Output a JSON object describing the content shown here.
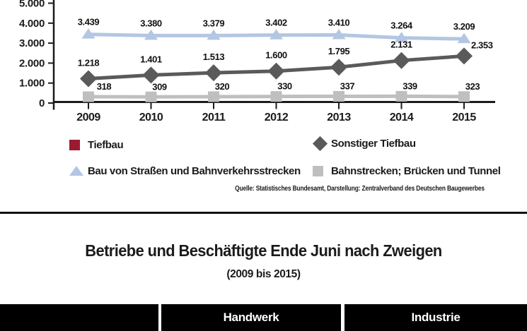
{
  "chart_data": {
    "type": "line",
    "categories": [
      "2009",
      "2010",
      "2011",
      "2012",
      "2013",
      "2014",
      "2015"
    ],
    "y_tick_labels": [
      "0",
      "1.000",
      "2.000",
      "3.000",
      "4.000",
      "5.000"
    ],
    "ylim": [
      0,
      5000
    ],
    "grid": false,
    "legend_position": "bottom",
    "series": [
      {
        "name": "Bau von Straßen und Bahnverkehrsstrecken",
        "marker": "triangle",
        "color": "#b3c6e2",
        "values": [
          3439,
          3380,
          3379,
          3402,
          3410,
          3264,
          3209
        ],
        "labels": [
          "3.439",
          "3.380",
          "3.379",
          "3.402",
          "3.410",
          "3.264",
          "3.209"
        ]
      },
      {
        "name": "Sonstiger Tiefbau",
        "marker": "diamond",
        "color": "#5a5a5a",
        "values": [
          1218,
          1401,
          1513,
          1600,
          1795,
          2131,
          2353
        ],
        "labels": [
          "1.218",
          "1.401",
          "1.513",
          "1.600",
          "1.795",
          "2.131",
          "2.353"
        ]
      },
      {
        "name": "Bahnstrecken; Brücken und Tunnel",
        "marker": "square",
        "color": "#bfbfbf",
        "values": [
          318,
          309,
          320,
          330,
          337,
          339,
          323
        ],
        "labels": [
          "318",
          "309",
          "320",
          "330",
          "337",
          "339",
          "323"
        ]
      }
    ],
    "source": "Quelle: Statistisches Bundesamt, Darstellung: Zentralverband des Deutschen Baugewerbes"
  },
  "legend": {
    "items": [
      {
        "label": "Tiefbau",
        "marker": "square",
        "color": "#9a1b2f"
      },
      {
        "label": "Sonstiger Tiefbau",
        "marker": "diamond",
        "color": "#5a5a5a"
      },
      {
        "label": "Bau von Straßen und Bahnverkehrsstrecken",
        "marker": "triangle",
        "color": "#b3c6e2"
      },
      {
        "label": "Bahnstrecken; Brücken und Tunnel",
        "marker": "square",
        "color": "#bfbfbf"
      }
    ]
  },
  "section": {
    "title": "Betriebe und Beschäftigte Ende Juni nach Zweigen",
    "subtitle": "(2009 bis 2015)"
  },
  "table": {
    "headers": [
      "",
      "Handwerk",
      "Industrie"
    ]
  },
  "colors": {
    "axis": "#1b1b1b",
    "header_bg": "#000000",
    "header_text": "#ffffff",
    "tiefbau_red": "#9a1b2f",
    "dark_gray": "#5a5a5a",
    "light_gray": "#bfbfbf",
    "light_blue": "#b3c6e2"
  }
}
